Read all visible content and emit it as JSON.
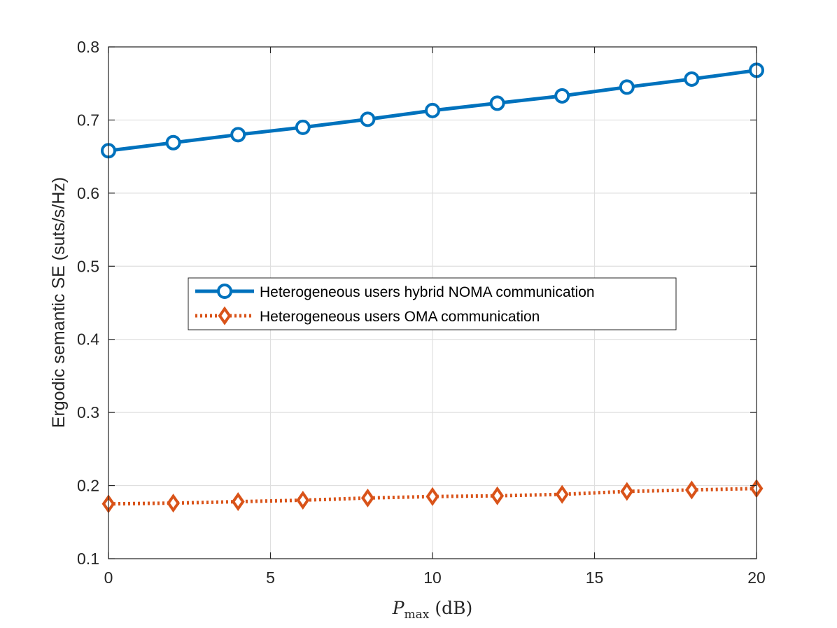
{
  "chart_data": {
    "type": "line",
    "title": "",
    "xlabel_symbol": "P",
    "xlabel_subscript": "max",
    "xlabel_unit": "(dB)",
    "ylabel": "Ergodic semantic SE (suts/s/Hz)",
    "xlim": [
      0,
      20
    ],
    "ylim": [
      0.1,
      0.8
    ],
    "xticks": [
      0,
      5,
      10,
      15,
      20
    ],
    "xtick_labels": [
      "0",
      "5",
      "10",
      "15",
      "20"
    ],
    "yticks": [
      0.1,
      0.2,
      0.3,
      0.4,
      0.5,
      0.6,
      0.7,
      0.8
    ],
    "ytick_labels": [
      "0.1",
      "0.2",
      "0.3",
      "0.4",
      "0.5",
      "0.6",
      "0.7",
      "0.8"
    ],
    "grid": true,
    "legend_position": "center",
    "x": [
      0,
      2,
      4,
      6,
      8,
      10,
      12,
      14,
      16,
      18,
      20
    ],
    "series": [
      {
        "name": "Heterogeneous users hybrid NOMA communication",
        "color": "#0072BD",
        "line_style": "solid",
        "marker": "circle",
        "values": [
          0.658,
          0.669,
          0.68,
          0.69,
          0.701,
          0.713,
          0.723,
          0.733,
          0.745,
          0.756,
          0.768
        ]
      },
      {
        "name": "Heterogeneous users OMA communication",
        "color": "#D95319",
        "line_style": "dotted",
        "marker": "diamond",
        "values": [
          0.175,
          0.176,
          0.178,
          0.18,
          0.183,
          0.185,
          0.186,
          0.188,
          0.192,
          0.194,
          0.196
        ]
      }
    ]
  }
}
